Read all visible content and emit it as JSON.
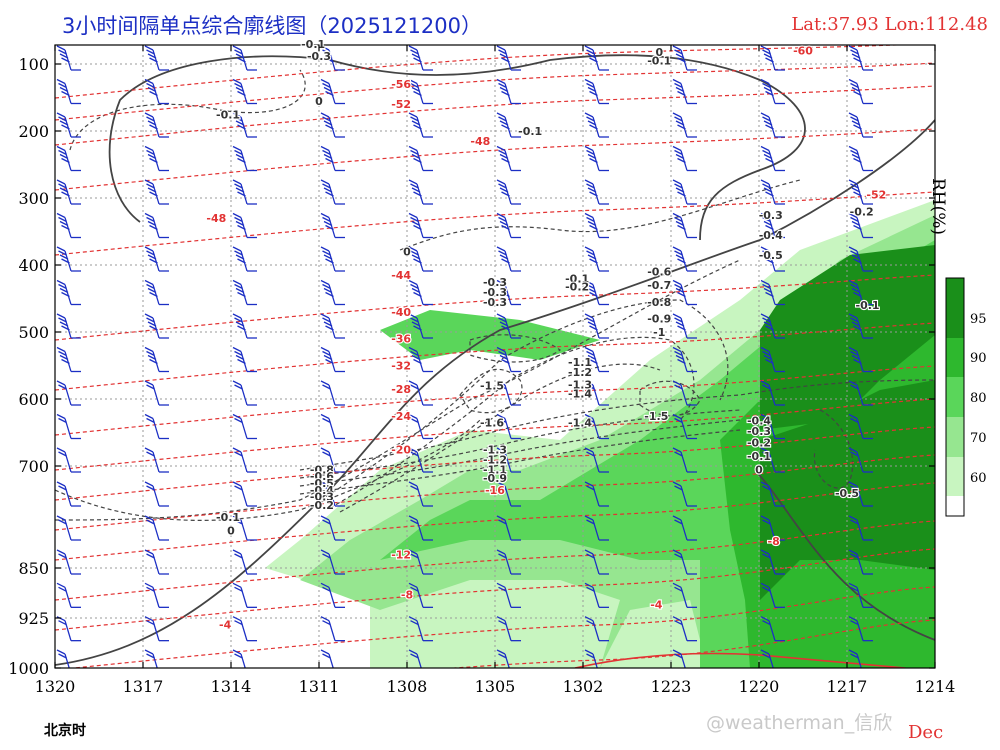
{
  "header": {
    "title": "3小时间隔单点综合廓线图（2025121200）",
    "location": "Lat:37.93  Lon:112.48"
  },
  "footer": {
    "time_label": "北京时",
    "month_label": "Dec",
    "watermark": "@weatherman_信欣"
  },
  "colors": {
    "rh_fill": [
      "#c8f5c0",
      "#96e690",
      "#5ad65a",
      "#2eb82e",
      "#1a8f1a"
    ],
    "temperature": "#e23333",
    "vertical_velocity": "#444444",
    "wind_barb": "#1c2fc4",
    "grid": "#9a9a9a"
  },
  "chart_data": {
    "type": "heatmap",
    "x_axis": {
      "label": "北京时",
      "tick_labels": [
        "1320",
        "1317",
        "1314",
        "1311",
        "1308",
        "1305",
        "1302",
        "1223",
        "1220",
        "1217",
        "1214"
      ],
      "direction": "reversed (latest time on left)"
    },
    "y_axis": {
      "unit": "hPa",
      "tick_labels": [
        "100",
        "200",
        "300",
        "400",
        "500",
        "600",
        "700",
        "850",
        "925",
        "1000"
      ],
      "range": [
        1000,
        100
      ]
    },
    "colorbar": {
      "title": "RH(%)",
      "levels": [
        60,
        70,
        80,
        90,
        95
      ]
    },
    "grid": true,
    "temperature_contour_labels": [
      {
        "value": "-60",
        "x": 1218.5,
        "p": 80
      },
      {
        "value": "-56",
        "x": 1308.2,
        "p": 130
      },
      {
        "value": "-52",
        "x": 1308.2,
        "p": 160
      },
      {
        "value": "-48",
        "x": 1305.5,
        "p": 215
      },
      {
        "value": "-52",
        "x": 1216.0,
        "p": 295
      },
      {
        "value": "-48",
        "x": 1314.5,
        "p": 330
      },
      {
        "value": "-44",
        "x": 1308.2,
        "p": 415
      },
      {
        "value": "-40",
        "x": 1308.2,
        "p": 470
      },
      {
        "value": "-36",
        "x": 1308.2,
        "p": 510
      },
      {
        "value": "-32",
        "x": 1308.2,
        "p": 550
      },
      {
        "value": "-28",
        "x": 1308.2,
        "p": 585
      },
      {
        "value": "-24",
        "x": 1308.2,
        "p": 625
      },
      {
        "value": "-20",
        "x": 1308.2,
        "p": 675
      },
      {
        "value": "-16",
        "x": 1305.0,
        "p": 735
      },
      {
        "value": "-12",
        "x": 1308.2,
        "p": 830
      },
      {
        "value": "-8",
        "x": 1219.5,
        "p": 810
      },
      {
        "value": "-8",
        "x": 1308.0,
        "p": 890
      },
      {
        "value": "-4",
        "x": 1223.5,
        "p": 905
      },
      {
        "value": "-4",
        "x": 1314.2,
        "p": 935
      }
    ],
    "vertical_velocity_labels": [
      {
        "value": "-0.1",
        "x": 1311.2,
        "p": 70
      },
      {
        "value": "-0.3",
        "x": 1311.0,
        "p": 88
      },
      {
        "value": "0",
        "x": 1311.0,
        "p": 155
      },
      {
        "value": "-0.1",
        "x": 1314.1,
        "p": 175
      },
      {
        "value": "0",
        "x": 1223.4,
        "p": 82
      },
      {
        "value": "-0.1",
        "x": 1223.4,
        "p": 95
      },
      {
        "value": "-0.1",
        "x": 1303.8,
        "p": 200
      },
      {
        "value": "0",
        "x": 1308.0,
        "p": 380
      },
      {
        "value": "-0.3",
        "x": 1219.6,
        "p": 325
      },
      {
        "value": "-0.2",
        "x": 1216.5,
        "p": 320
      },
      {
        "value": "-0.4",
        "x": 1219.6,
        "p": 355
      },
      {
        "value": "-0.5",
        "x": 1219.6,
        "p": 385
      },
      {
        "value": "-0.1",
        "x": 1302.2,
        "p": 420
      },
      {
        "value": "-0.2",
        "x": 1302.2,
        "p": 432
      },
      {
        "value": "-0.3",
        "x": 1305.0,
        "p": 425
      },
      {
        "value": "-0.3",
        "x": 1305.0,
        "p": 440
      },
      {
        "value": "-0.3",
        "x": 1305.0,
        "p": 455
      },
      {
        "value": "-0.6",
        "x": 1223.4,
        "p": 410
      },
      {
        "value": "-0.7",
        "x": 1223.4,
        "p": 430
      },
      {
        "value": "-0.8",
        "x": 1223.4,
        "p": 455
      },
      {
        "value": "-0.9",
        "x": 1223.4,
        "p": 480
      },
      {
        "value": "-1",
        "x": 1223.4,
        "p": 500
      },
      {
        "value": "-0.1",
        "x": 1216.3,
        "p": 460
      },
      {
        "value": "-1.1",
        "x": 1302.1,
        "p": 545
      },
      {
        "value": "-1.2",
        "x": 1302.1,
        "p": 560
      },
      {
        "value": "-1.3",
        "x": 1302.1,
        "p": 578
      },
      {
        "value": "-1.4",
        "x": 1302.1,
        "p": 592
      },
      {
        "value": "-1.5",
        "x": 1305.1,
        "p": 580
      },
      {
        "value": "-1.6",
        "x": 1305.1,
        "p": 635
      },
      {
        "value": "-1.4",
        "x": 1302.1,
        "p": 635
      },
      {
        "value": "-1.5",
        "x": 1223.5,
        "p": 625
      },
      {
        "value": "-0.4",
        "x": 1220.0,
        "p": 632
      },
      {
        "value": "-0.3",
        "x": 1220.0,
        "p": 648
      },
      {
        "value": "-0.2",
        "x": 1220.0,
        "p": 665
      },
      {
        "value": "-0.1",
        "x": 1220.0,
        "p": 685
      },
      {
        "value": "0",
        "x": 1220.0,
        "p": 705
      },
      {
        "value": "-1.3",
        "x": 1305.0,
        "p": 675
      },
      {
        "value": "-1.2",
        "x": 1305.0,
        "p": 690
      },
      {
        "value": "-1.1",
        "x": 1305.0,
        "p": 705
      },
      {
        "value": "-0.9",
        "x": 1305.0,
        "p": 718
      },
      {
        "value": "-0.5",
        "x": 1217.0,
        "p": 740
      },
      {
        "value": "-0.1",
        "x": 1314.1,
        "p": 775
      },
      {
        "value": "0",
        "x": 1314.0,
        "p": 795
      },
      {
        "value": "-0.8",
        "x": 1310.9,
        "p": 705
      },
      {
        "value": "-0.6",
        "x": 1310.9,
        "p": 715
      },
      {
        "value": "-0.5",
        "x": 1310.9,
        "p": 725
      },
      {
        "value": "-0.4",
        "x": 1310.9,
        "p": 735
      },
      {
        "value": "-0.3",
        "x": 1310.9,
        "p": 745
      },
      {
        "value": "-0.2",
        "x": 1310.9,
        "p": 757
      }
    ]
  }
}
